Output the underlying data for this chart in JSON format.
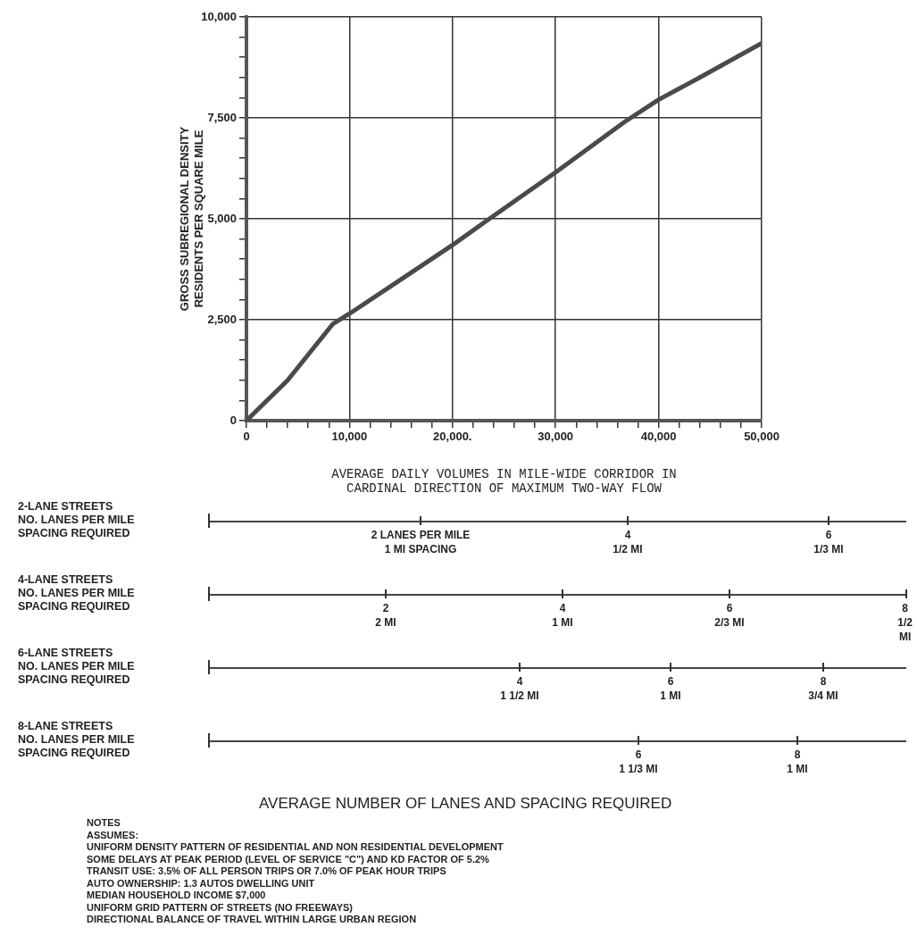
{
  "chart_data": {
    "type": "line",
    "xlabel": "AVERAGE DAILY VOLUMES IN MILE-WIDE CORRIDOR IN\nCARDINAL DIRECTION OF MAXIMUM TWO-WAY FLOW",
    "ylabel": "GROSS SUBREGIONAL DENSITY\nRESIDENTS PER SQUARE MILE",
    "series": [
      {
        "color": "#4a4a4a",
        "x": [
          0,
          4000,
          8400,
          10000,
          15000,
          20000,
          23300,
          30000,
          36700,
          40000,
          44000,
          50000
        ],
        "values": [
          0,
          1000,
          2400,
          2650,
          3500,
          4350,
          4950,
          6150,
          7400,
          7950,
          8500,
          9350
        ]
      }
    ],
    "xlim": [
      0,
      50000
    ],
    "ylim": [
      0,
      10000
    ],
    "xticks": [
      0,
      {
        "value": 2000,
        "label": null
      },
      {
        "value": 4000,
        "label": null
      },
      {
        "value": 6000,
        "label": null
      },
      {
        "value": 8000,
        "label": null
      },
      {
        "value": 10000,
        "label": "10,000"
      },
      {
        "value": 12000,
        "label": null
      },
      {
        "value": 14000,
        "label": null
      },
      {
        "value": 16000,
        "label": null
      },
      {
        "value": 18000,
        "label": null
      },
      {
        "value": 20000,
        "label": "20,000."
      },
      {
        "value": 22000,
        "label": null
      },
      {
        "value": 24000,
        "label": null
      },
      {
        "value": 26000,
        "label": null
      },
      {
        "value": 28000,
        "label": null
      },
      {
        "value": 30000,
        "label": "30,000"
      },
      {
        "value": 32000,
        "label": null
      },
      {
        "value": 34000,
        "label": null
      },
      {
        "value": 36000,
        "label": null
      },
      {
        "value": 38000,
        "label": null
      },
      {
        "value": 40000,
        "label": "40,000"
      },
      {
        "value": 42000,
        "label": null
      },
      {
        "value": 44000,
        "label": null
      },
      {
        "value": 46000,
        "label": null
      },
      {
        "value": 48000,
        "label": null
      },
      {
        "value": 50000,
        "label": "50,000"
      }
    ],
    "yticks": [
      0,
      {
        "value": 500,
        "label": null
      },
      {
        "value": 1000,
        "label": null
      },
      {
        "value": 1500,
        "label": null
      },
      {
        "value": 2000,
        "label": null
      },
      {
        "value": 2500,
        "label": "2,500"
      },
      {
        "value": 3000,
        "label": null
      },
      {
        "value": 3500,
        "label": null
      },
      {
        "value": 4000,
        "label": null
      },
      {
        "value": 4500,
        "label": null
      },
      {
        "value": 5000,
        "label": "5,000"
      },
      {
        "value": 5500,
        "label": null
      },
      {
        "value": 6000,
        "label": null
      },
      {
        "value": 6500,
        "label": null
      },
      {
        "value": 7000,
        "label": null
      },
      {
        "value": 7500,
        "label": "7,500"
      },
      {
        "value": 8000,
        "label": null
      },
      {
        "value": 8500,
        "label": null
      },
      {
        "value": 9000,
        "label": null
      },
      {
        "value": 9500,
        "label": null
      },
      {
        "value": 10000,
        "label": "10,000"
      }
    ],
    "grid": true,
    "legend": false,
    "marker": "none",
    "line_style": "solid",
    "annotations": [
      "2-LANE STREETS\nNO. LANES PER MILE\nSPACING REQUIRED",
      "2 LANES PER MILE\n1 MI SPACING",
      "4\n1/2 MI",
      "6\n1/3 MI",
      "4-LANE STREETS\nNO. LANES PER MILE\nSPACING REQUIRED",
      "2\n2 MI",
      "4\n1 MI",
      "6\n2/3 MI",
      "8\n1/2 MI",
      "6-LANE STREETS\nNO. LANES PER MILE\nSPACING REQUIRED",
      "4\n1 1/2 MI",
      "6\n1 MI",
      "8\n3/4 MI",
      "8-LANE STREETS\nNO. LANES PER MILE\nSPACING REQUIRED",
      "6\n1 1/3 MI",
      "8\n1 MI",
      "AVERAGE NUMBER OF LANES AND SPACING REQUIRED",
      "NOTES",
      "ASSUMES:",
      "UNIFORM DENSITY PATTERN OF RESIDENTIAL AND NON RESIDENTIAL DEVELOPMENT",
      "SOME DELAYS AT PEAK PERIOD (LEVEL OF SERVICE \"C\") AND KD FACTOR OF 5.2%",
      "TRANSIT USE: 3.5% OF ALL PERSON TRIPS OR 7.0% OF PEAK HOUR TRIPS",
      "AUTO OWNERSHIP: 1.3 AUTOS DWELLING UNIT",
      "MEDIAN HOUSEHOLD INCOME $7,000",
      "UNIFORM GRID PATTERN OF STREETS (NO FREEWAYS)",
      "DIRECTIONAL BALANCE OF TRAVEL WITHIN LARGE URBAN REGION"
    ]
  }
}
